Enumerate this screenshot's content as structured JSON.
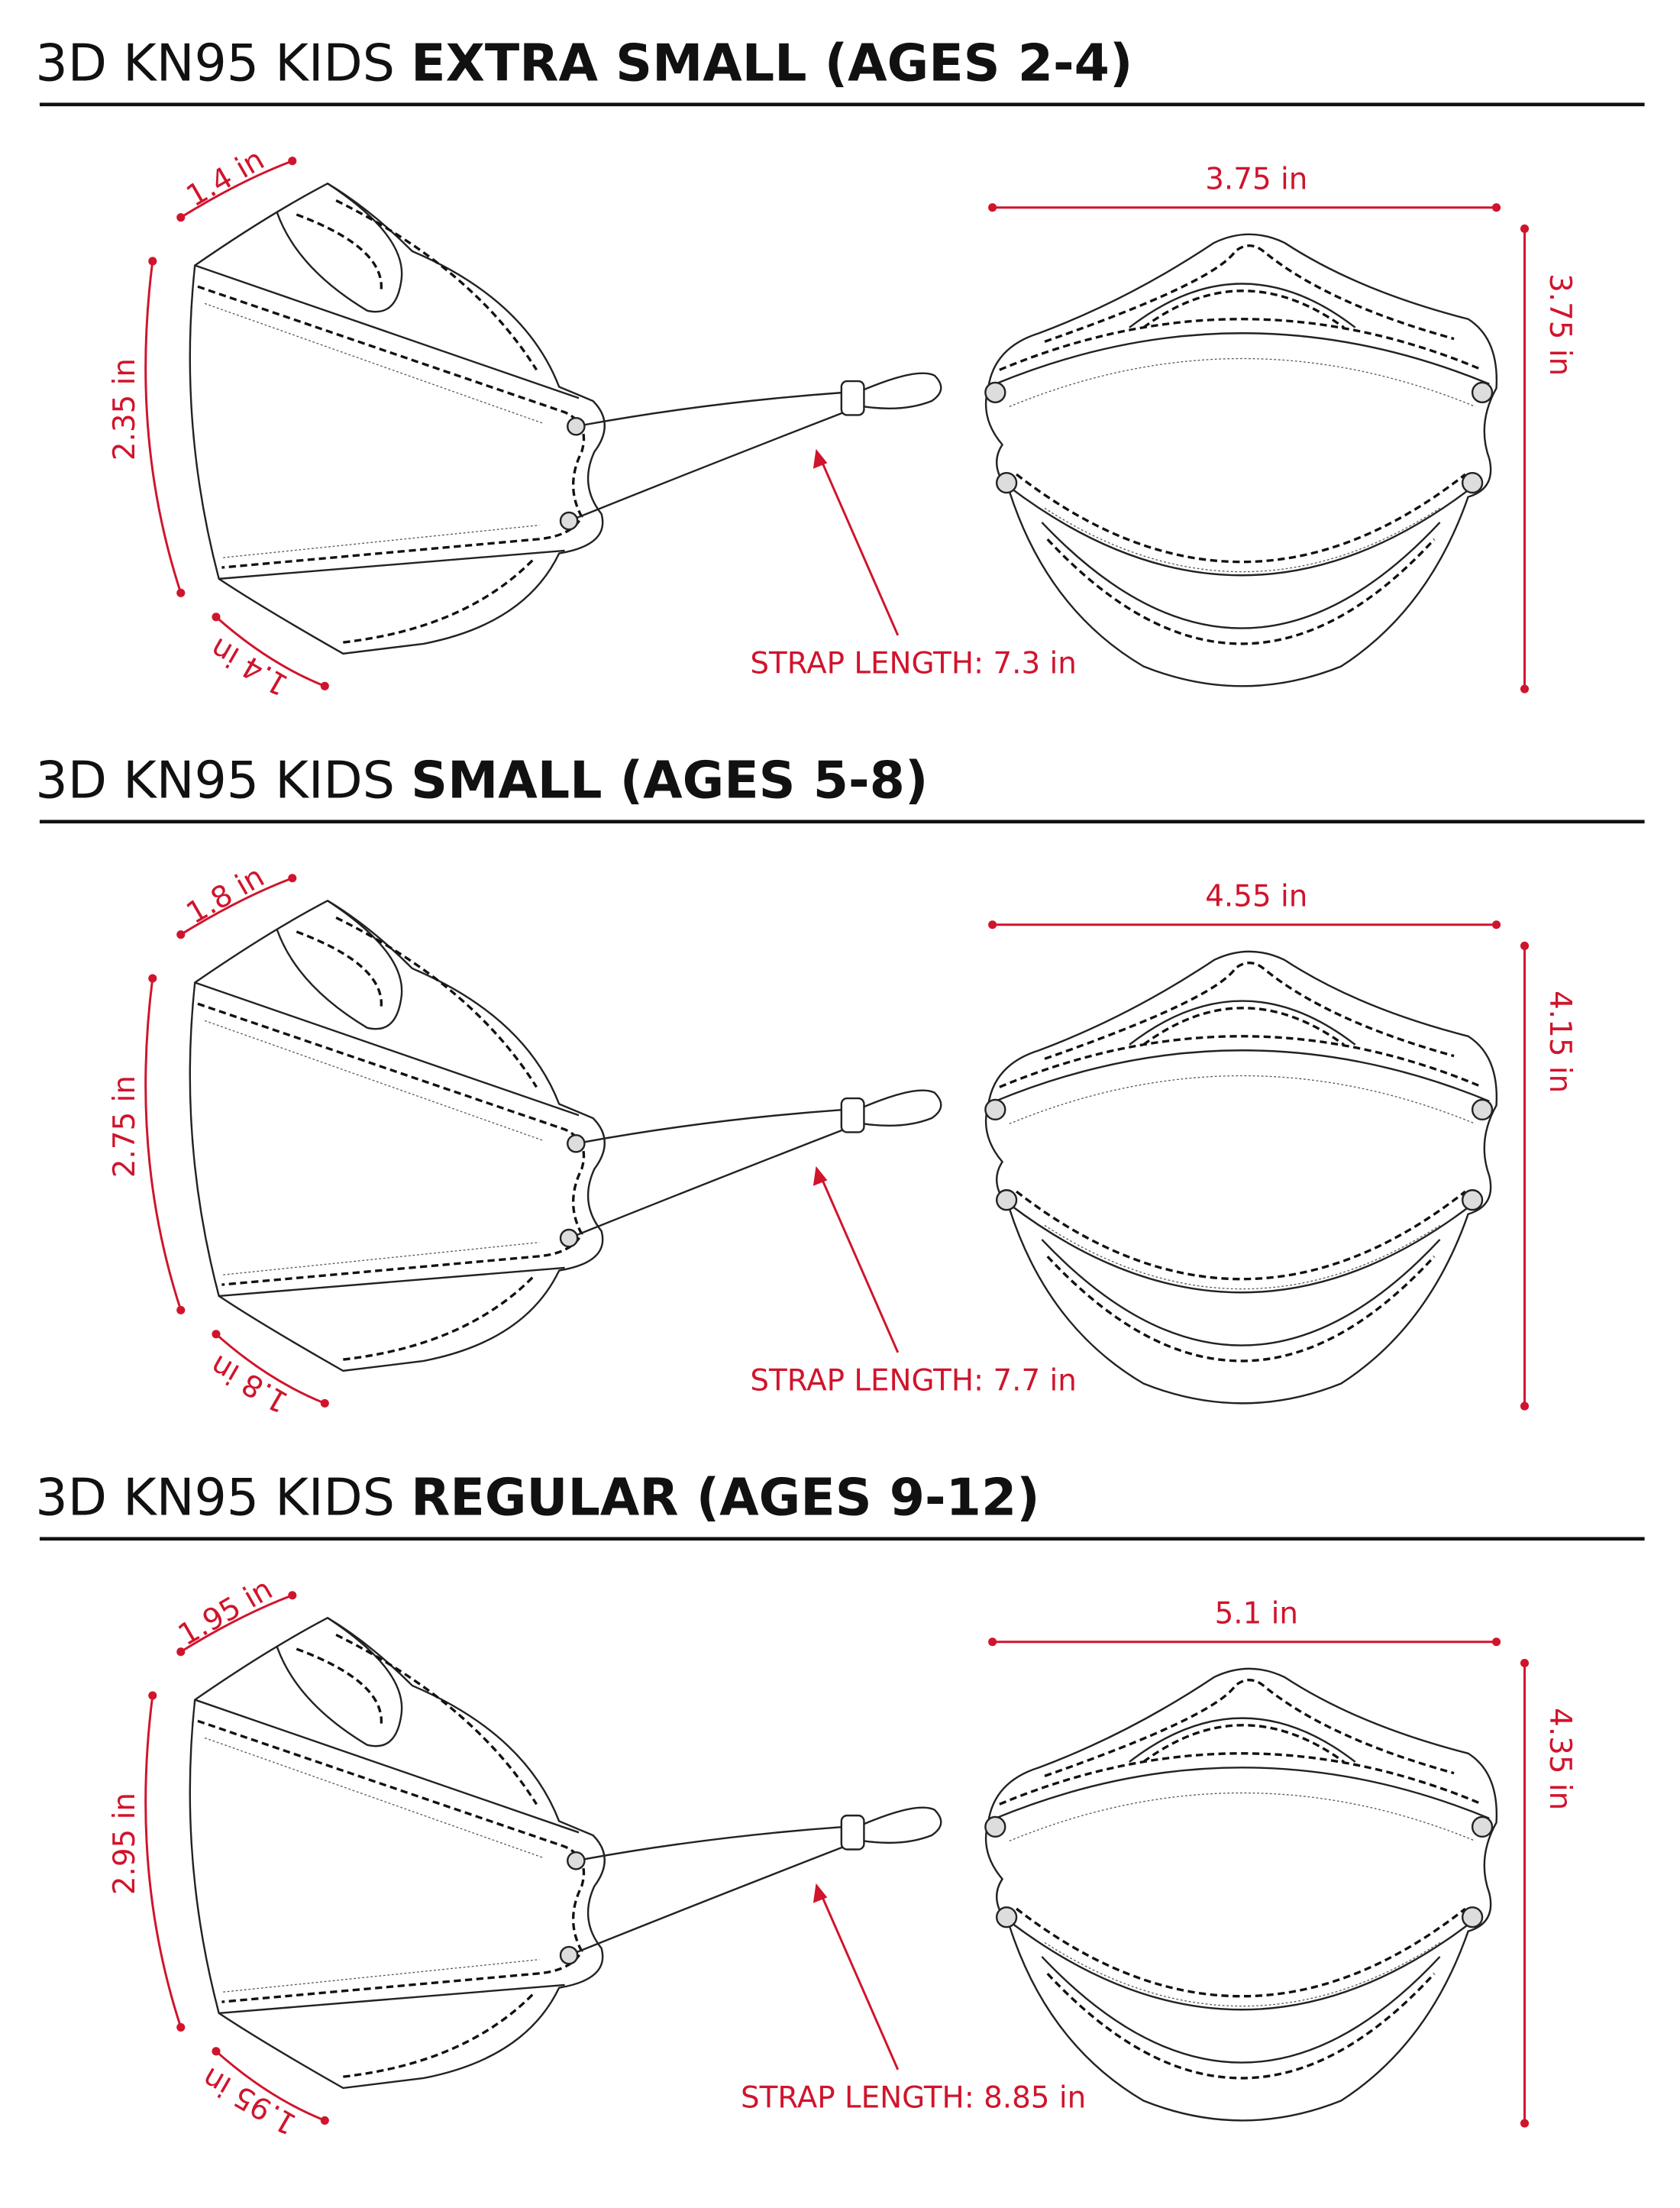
{
  "sections": [
    {
      "title_light": "3D KN95 KIDS",
      "title_bold": "EXTRA SMALL (AGES 2-4)",
      "top": "1.4 in",
      "side": "2.35 in",
      "bottom": "1.4 in",
      "width": "3.75 in",
      "height": "3.75 in",
      "strap": "STRAP LENGTH: 7.3 in"
    },
    {
      "title_light": "3D KN95 KIDS",
      "title_bold": "SMALL (AGES 5-8)",
      "top": "1.8 in",
      "side": "2.75 in",
      "bottom": "1.8 in",
      "width": "4.55 in",
      "height": "4.15 in",
      "strap": "STRAP LENGTH: 7.7 in"
    },
    {
      "title_light": "3D KN95 KIDS",
      "title_bold": "REGULAR (AGES 9-12)",
      "top": "1.95 in",
      "side": "2.95 in",
      "bottom": "1.95 in",
      "width": "5.1 in",
      "height": "4.35 in",
      "strap": "STRAP LENGTH: 8.85 in"
    }
  ]
}
